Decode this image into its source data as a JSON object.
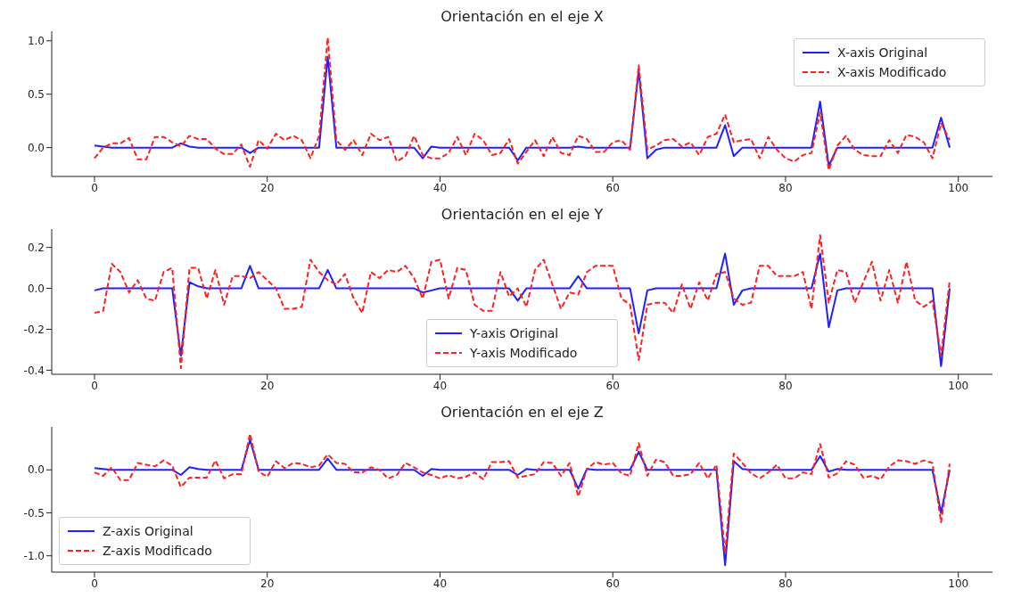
{
  "chart_data": [
    {
      "type": "line",
      "title": "Orientación en el eje X",
      "legend": "top right",
      "xlim": [
        -4.95,
        103.95
      ],
      "xticks": [
        0,
        20,
        40,
        60,
        80,
        100
      ],
      "ylim": [
        -0.27,
        1.09
      ],
      "yticks": [
        {
          "value": 0,
          "label": "0.0"
        },
        {
          "value": 0.5,
          "label": "0.5"
        },
        {
          "value": 1,
          "label": "1.0"
        }
      ],
      "x": [
        0,
        1,
        2,
        3,
        4,
        5,
        6,
        7,
        8,
        9,
        10,
        11,
        12,
        13,
        14,
        15,
        16,
        17,
        18,
        19,
        20,
        21,
        22,
        23,
        24,
        25,
        26,
        27,
        28,
        29,
        30,
        31,
        32,
        33,
        34,
        35,
        36,
        37,
        38,
        39,
        40,
        41,
        42,
        43,
        44,
        45,
        46,
        47,
        48,
        49,
        50,
        51,
        52,
        53,
        54,
        55,
        56,
        57,
        58,
        59,
        60,
        61,
        62,
        63,
        64,
        65,
        66,
        67,
        68,
        69,
        70,
        71,
        72,
        73,
        74,
        75,
        76,
        77,
        78,
        79,
        80,
        81,
        82,
        83,
        84,
        85,
        86,
        87,
        88,
        89,
        90,
        91,
        92,
        93,
        94,
        95,
        96,
        97,
        98,
        99
      ],
      "series": [
        {
          "name": "X-axis Original",
          "color": "#1f1fff",
          "line_style": "solid",
          "values": [
            0.02,
            0.01,
            0,
            0,
            0,
            0,
            0,
            0,
            0,
            0,
            0.04,
            0.01,
            0,
            0,
            0,
            0,
            0,
            0,
            -0.05,
            0,
            0,
            0,
            0,
            0,
            0,
            0,
            0,
            0.85,
            0,
            0,
            0,
            0,
            0,
            0,
            0,
            0,
            0,
            0,
            -0.1,
            0.01,
            0,
            0,
            0,
            0,
            0,
            0,
            0,
            0,
            0,
            -0.12,
            0,
            0,
            0,
            0,
            0,
            0,
            0.01,
            0,
            0,
            0,
            0,
            0,
            0,
            0.72,
            -0.1,
            -0.02,
            0,
            0,
            0,
            0,
            0,
            0,
            0,
            0.21,
            -0.08,
            0,
            0,
            0,
            0,
            0,
            0,
            0,
            0,
            0,
            0.43,
            -0.17,
            0,
            0,
            0,
            0,
            0,
            0,
            0,
            0,
            0,
            0,
            0,
            0,
            0.28,
            0
          ]
        },
        {
          "name": "X-axis Modificado",
          "color": "#ff2020",
          "line_style": "dashed",
          "values": [
            -0.1,
            0,
            0.04,
            0.04,
            0.09,
            -0.11,
            -0.11,
            0.1,
            0.1,
            0.05,
            0.01,
            0.11,
            0.08,
            0.08,
            -0.01,
            -0.06,
            -0.06,
            0.03,
            -0.18,
            0.07,
            -0.01,
            0.13,
            0.07,
            0.11,
            0.07,
            -0.1,
            0.11,
            1.03,
            0.07,
            -0.02,
            0.07,
            -0.07,
            0.13,
            0.07,
            0.1,
            -0.13,
            -0.08,
            0.11,
            -0.07,
            -0.1,
            -0.1,
            -0.05,
            0.1,
            -0.07,
            0.13,
            0.07,
            -0.07,
            -0.05,
            0.08,
            -0.15,
            -0.04,
            0.07,
            -0.08,
            0.1,
            -0.05,
            -0.07,
            0.11,
            0.08,
            -0.04,
            -0.04,
            0.05,
            0.07,
            -0.02,
            0.77,
            -0.02,
            0.02,
            0.07,
            0.08,
            0.01,
            0.05,
            -0.07,
            0.1,
            0.13,
            0.31,
            0.05,
            0.07,
            0.08,
            -0.1,
            0.1,
            -0.02,
            -0.1,
            -0.13,
            -0.07,
            -0.05,
            0.33,
            -0.21,
            0.02,
            0.11,
            -0.02,
            -0.07,
            -0.08,
            -0.08,
            0.07,
            -0.05,
            0.12,
            0.1,
            0.05,
            -0.1,
            0.23,
            0.07
          ]
        }
      ]
    },
    {
      "type": "line",
      "title": "Orientación en el eje Y",
      "legend": "bottom",
      "xlim": [
        -4.95,
        103.95
      ],
      "xticks": [
        0,
        20,
        40,
        60,
        80,
        100
      ],
      "ylim": [
        -0.42,
        0.29
      ],
      "yticks": [
        {
          "value": -0.4,
          "label": "-0.4"
        },
        {
          "value": -0.2,
          "label": "-0.2"
        },
        {
          "value": 0,
          "label": "0.0"
        },
        {
          "value": 0.2,
          "label": "0.2"
        }
      ],
      "x": [
        0,
        1,
        2,
        3,
        4,
        5,
        6,
        7,
        8,
        9,
        10,
        11,
        12,
        13,
        14,
        15,
        16,
        17,
        18,
        19,
        20,
        21,
        22,
        23,
        24,
        25,
        26,
        27,
        28,
        29,
        30,
        31,
        32,
        33,
        34,
        35,
        36,
        37,
        38,
        39,
        40,
        41,
        42,
        43,
        44,
        45,
        46,
        47,
        48,
        49,
        50,
        51,
        52,
        53,
        54,
        55,
        56,
        57,
        58,
        59,
        60,
        61,
        62,
        63,
        64,
        65,
        66,
        67,
        68,
        69,
        70,
        71,
        72,
        73,
        74,
        75,
        76,
        77,
        78,
        79,
        80,
        81,
        82,
        83,
        84,
        85,
        86,
        87,
        88,
        89,
        90,
        91,
        92,
        93,
        94,
        95,
        96,
        97,
        98,
        99
      ],
      "series": [
        {
          "name": "Y-axis Original",
          "color": "#1f1fff",
          "line_style": "solid",
          "values": [
            -0.01,
            0,
            0,
            0,
            0,
            0,
            0,
            0,
            0,
            0,
            -0.33,
            0.03,
            0.01,
            0,
            0,
            0,
            0,
            0,
            0.11,
            0,
            0,
            0,
            0,
            0,
            0,
            0,
            0,
            0.09,
            0,
            0,
            0,
            0,
            0,
            0,
            0,
            0,
            0,
            0,
            -0.02,
            -0.01,
            0,
            0,
            0,
            0,
            0,
            0,
            0,
            0,
            0,
            -0.06,
            0,
            0,
            0,
            0,
            0,
            0,
            0.06,
            0,
            0,
            0,
            0,
            0,
            0,
            -0.22,
            -0.01,
            0,
            0,
            0,
            0,
            0,
            0,
            0,
            0,
            0.17,
            -0.08,
            -0.01,
            0,
            0,
            0,
            0,
            0,
            0,
            0,
            0,
            0.17,
            -0.19,
            -0.01,
            0,
            0,
            0,
            0,
            0,
            0,
            0,
            0,
            0,
            0,
            0,
            -0.38,
            0
          ]
        },
        {
          "name": "Y-axis Modificado",
          "color": "#ff2020",
          "line_style": "dashed",
          "values": [
            -0.12,
            -0.11,
            0.12,
            0.08,
            -0.02,
            0.04,
            -0.05,
            -0.06,
            0.08,
            0.1,
            -0.39,
            0.1,
            0.1,
            -0.05,
            0.09,
            -0.08,
            0.06,
            0.06,
            0.05,
            0.08,
            0.04,
            0,
            -0.1,
            -0.1,
            -0.09,
            0.14,
            0.08,
            0.04,
            0.02,
            0.07,
            -0.05,
            -0.12,
            0.08,
            0.05,
            0.09,
            0.08,
            0.11,
            0.05,
            -0.05,
            0.13,
            0.14,
            -0.05,
            0.1,
            0.09,
            -0.08,
            -0.11,
            -0.11,
            0.08,
            -0.04,
            0,
            -0.09,
            0.09,
            0.14,
            0.02,
            -0.1,
            -0.02,
            -0.03,
            0.08,
            0.11,
            0.11,
            0.11,
            -0.05,
            -0.08,
            -0.35,
            -0.08,
            -0.07,
            -0.07,
            -0.12,
            0.02,
            -0.1,
            0.03,
            -0.06,
            0.07,
            0.08,
            -0.05,
            -0.08,
            -0.07,
            0.11,
            0.11,
            0.06,
            0.06,
            0.06,
            0.08,
            -0.1,
            0.26,
            -0.07,
            0.09,
            0.08,
            -0.07,
            0.03,
            0.13,
            -0.06,
            0.09,
            -0.07,
            0.13,
            -0.06,
            -0.09,
            -0.06,
            -0.33,
            0.04
          ]
        }
      ]
    },
    {
      "type": "line",
      "title": "Orientación en el eje Z",
      "legend": "bottom left",
      "xlim": [
        -4.95,
        103.95
      ],
      "xticks": [
        0,
        20,
        40,
        60,
        80,
        100
      ],
      "ylim": [
        -1.19,
        0.5
      ],
      "yticks": [
        {
          "value": -1,
          "label": "-1.0"
        },
        {
          "value": -0.5,
          "label": "-0.5"
        },
        {
          "value": 0,
          "label": "0.0"
        }
      ],
      "x": [
        0,
        1,
        2,
        3,
        4,
        5,
        6,
        7,
        8,
        9,
        10,
        11,
        12,
        13,
        14,
        15,
        16,
        17,
        18,
        19,
        20,
        21,
        22,
        23,
        24,
        25,
        26,
        27,
        28,
        29,
        30,
        31,
        32,
        33,
        34,
        35,
        36,
        37,
        38,
        39,
        40,
        41,
        42,
        43,
        44,
        45,
        46,
        47,
        48,
        49,
        50,
        51,
        52,
        53,
        54,
        55,
        56,
        57,
        58,
        59,
        60,
        61,
        62,
        63,
        64,
        65,
        66,
        67,
        68,
        69,
        70,
        71,
        72,
        73,
        74,
        75,
        76,
        77,
        78,
        79,
        80,
        81,
        82,
        83,
        84,
        85,
        86,
        87,
        88,
        89,
        90,
        91,
        92,
        93,
        94,
        95,
        96,
        97,
        98,
        99
      ],
      "series": [
        {
          "name": "Z-axis Original",
          "color": "#1f1fff",
          "line_style": "solid",
          "values": [
            0.02,
            0.01,
            0,
            0,
            0,
            0,
            0,
            0,
            0,
            0,
            -0.06,
            0.03,
            0.01,
            0,
            0,
            0,
            0,
            0,
            0.35,
            0,
            0,
            0,
            0,
            0,
            0,
            0,
            0,
            0.13,
            0,
            0,
            0,
            0,
            0,
            0,
            0,
            0,
            0,
            0,
            -0.07,
            0.01,
            0,
            0,
            0,
            0,
            0,
            0,
            0,
            0,
            0,
            -0.06,
            0.01,
            0,
            0,
            0,
            0,
            0,
            -0.22,
            0.01,
            0,
            0,
            0,
            0,
            0,
            0.21,
            0,
            0,
            0,
            0,
            0,
            0,
            0,
            0,
            0,
            -1.11,
            0.1,
            0.01,
            0,
            0,
            0,
            0,
            0,
            0,
            0,
            0,
            0.16,
            -0.02,
            0.01,
            0,
            0,
            0,
            0,
            0,
            0,
            0,
            0,
            0,
            0,
            0,
            -0.5,
            0
          ]
        },
        {
          "name": "Z-axis Modificado",
          "color": "#ff2020",
          "line_style": "dashed",
          "values": [
            -0.03,
            -0.07,
            0.03,
            -0.12,
            -0.12,
            0.08,
            0.06,
            0.04,
            0.11,
            0.05,
            -0.2,
            -0.09,
            -0.09,
            -0.09,
            0.11,
            -0.1,
            -0.05,
            -0.05,
            0.42,
            -0.02,
            -0.08,
            0.1,
            0.02,
            0.08,
            0.07,
            0.03,
            0.05,
            0.18,
            0.08,
            0.07,
            -0.03,
            -0.03,
            0.03,
            0,
            -0.1,
            -0.06,
            0.08,
            0.03,
            -0.03,
            -0.06,
            -0.1,
            -0.06,
            -0.1,
            -0.08,
            -0.03,
            -0.11,
            0.09,
            0.09,
            0.1,
            -0.09,
            -0.07,
            -0.05,
            0.09,
            0.08,
            -0.07,
            0.08,
            -0.31,
            0.01,
            0.09,
            0.06,
            0.08,
            -0.04,
            -0.07,
            0.31,
            -0.07,
            0.12,
            0.09,
            -0.07,
            -0.07,
            -0.05,
            0.08,
            -0.1,
            0.06,
            -0.97,
            0.19,
            0.08,
            -0.04,
            -0.1,
            -0.03,
            0.06,
            -0.1,
            -0.1,
            -0.03,
            -0.05,
            0.3,
            -0.09,
            -0.04,
            0.1,
            0.06,
            -0.09,
            -0.07,
            -0.11,
            0.04,
            0.11,
            0.1,
            0.07,
            0.11,
            0.08,
            -0.61,
            0.07
          ]
        }
      ]
    }
  ]
}
